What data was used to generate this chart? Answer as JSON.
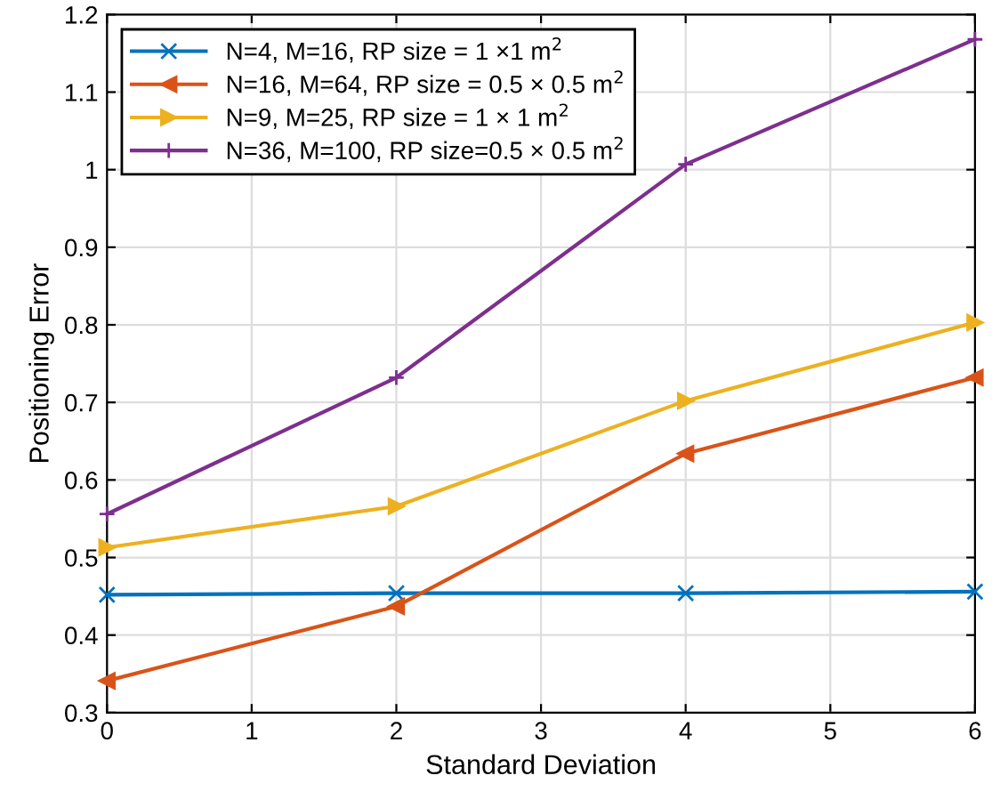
{
  "chart_data": {
    "type": "line",
    "xlabel": "Standard Deviation",
    "ylabel": "Positioning Error",
    "x": [
      0,
      2,
      4,
      6
    ],
    "series": [
      {
        "name": "N=4, M=16, RP size = 1 ×1 m$^{2}$",
        "color": "#0072bd",
        "marker": "cross",
        "values": [
          0.452,
          0.454,
          0.454,
          0.456
        ]
      },
      {
        "name": "N=16, M=64, RP size = 0.5 × 0.5 m$^{2}$",
        "color": "#d95319",
        "marker": "triangle-left",
        "values": [
          0.341,
          0.437,
          0.634,
          0.732
        ]
      },
      {
        "name": "N=9, M=25, RP size = 1 × 1 m$^{2}$",
        "color": "#edb120",
        "marker": "triangle-right",
        "values": [
          0.513,
          0.566,
          0.702,
          0.803
        ]
      },
      {
        "name": "N=36, M=100, RP size=0.5 × 0.5 m$^{2}$",
        "color": "#7e2f8e",
        "marker": "plus",
        "values": [
          0.556,
          0.732,
          1.007,
          1.168
        ]
      }
    ],
    "xlim": [
      0,
      6
    ],
    "xticks": [
      0,
      1,
      2,
      3,
      4,
      5,
      6
    ],
    "ylim": [
      0.3,
      1.2
    ],
    "yticks": [
      0.3,
      0.4,
      0.5,
      0.6,
      0.7,
      0.8,
      0.9,
      1,
      1.1,
      1.2
    ],
    "grid": true,
    "legend": "top left",
    "line_style": "solid"
  }
}
